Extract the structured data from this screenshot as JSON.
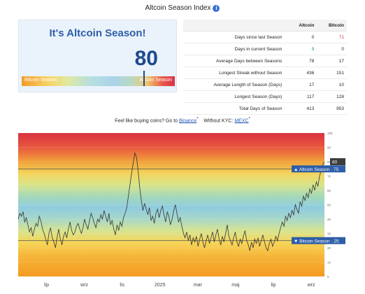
{
  "page_title": "Altcoin Season Index",
  "info_glyph": "i",
  "index_card": {
    "heading": "It's Altcoin Season!",
    "value": "80",
    "index_number": 80,
    "bar_left_label": "Bitcoin Season",
    "bar_right_label": "Altcoin Season"
  },
  "stats": {
    "headers": [
      "",
      "Altcoin",
      "Bitcoin"
    ],
    "rows": [
      {
        "metric": "Days since last Season",
        "altcoin": "0",
        "bitcoin": "71",
        "bitcoin_color": "#d93b3b"
      },
      {
        "metric": "Days in current Season",
        "altcoin": "9",
        "bitcoin": "0",
        "altcoin_color": "#2e9e46"
      },
      {
        "metric": "Average Days between Seasons",
        "altcoin": "78",
        "bitcoin": "17"
      },
      {
        "metric": "Longest Streak without Season",
        "altcoin": "436",
        "bitcoin": "151"
      },
      {
        "metric": "Average Length of Season (Days)",
        "altcoin": "17",
        "bitcoin": "10"
      },
      {
        "metric": "Longest Season (Days)",
        "altcoin": "117",
        "bitcoin": "128"
      },
      {
        "metric": "Total Days of Season",
        "altcoin": "413",
        "bitcoin": "953"
      }
    ]
  },
  "buy_line": {
    "prefix": "Feel like buying coins? Go to",
    "link1": "Binance",
    "mid": "Without KYC:",
    "link2": "MEXC",
    "sup": "*"
  },
  "chart_data": {
    "type": "line",
    "x_ticks": [
      "lip",
      "wrz",
      "lis",
      "2025",
      "mar",
      "maj",
      "lip",
      "wrz"
    ],
    "y_ticks": [
      "100",
      "90",
      "80",
      "70",
      "60",
      "50",
      "40",
      "30",
      "20",
      "10",
      "0"
    ],
    "ylim": [
      0,
      100
    ],
    "altcoin_threshold": {
      "label": "Altcoin Season",
      "value": 75
    },
    "bitcoin_threshold": {
      "label": "Bitcoin Season",
      "value": 25
    },
    "current_value": {
      "label": "80",
      "value": 80
    },
    "series": [
      {
        "values": [
          40,
          44,
          42,
          45,
          38,
          41,
          36,
          31,
          34,
          28,
          33,
          37,
          35,
          42,
          39,
          33,
          30,
          26,
          22,
          30,
          34,
          27,
          24,
          20,
          27,
          33,
          26,
          22,
          28,
          31,
          27,
          33,
          38,
          32,
          29,
          31,
          35,
          37,
          33,
          30,
          34,
          40,
          36,
          33,
          39,
          44,
          41,
          37,
          34,
          40,
          38,
          43,
          40,
          46,
          42,
          38,
          44,
          36,
          39,
          33,
          29,
          36,
          32,
          38,
          35,
          41,
          44,
          48,
          56,
          64,
          72,
          79,
          86,
          83,
          74,
          62,
          53,
          46,
          51,
          47,
          43,
          48,
          39,
          42,
          37,
          44,
          47,
          41,
          46,
          49,
          43,
          38,
          45,
          42,
          36,
          40,
          46,
          50,
          44,
          38,
          41,
          35,
          30,
          27,
          31,
          25,
          29,
          22,
          27,
          24,
          28,
          21,
          26,
          30,
          24,
          20,
          25,
          29,
          23,
          27,
          31,
          24,
          29,
          33,
          26,
          22,
          28,
          24,
          30,
          36,
          28,
          25,
          22,
          27,
          31,
          24,
          21,
          26,
          23,
          28,
          32,
          25,
          22,
          18,
          24,
          20,
          26,
          23,
          27,
          21,
          25,
          29,
          24,
          20,
          18,
          23,
          26,
          21,
          24,
          28,
          25,
          30,
          34,
          38,
          35,
          42,
          39,
          44,
          41,
          46,
          43,
          50,
          47,
          44,
          52,
          49,
          56,
          53,
          58,
          55,
          61,
          58,
          64,
          60,
          66,
          63,
          70,
          74,
          78,
          80
        ]
      }
    ]
  },
  "colors": {
    "accent": "#1d4a8c",
    "altcoin_red": "#d93b3b",
    "bitcoin_green": "#2e9e46",
    "tag_blue": "#2e5ea8"
  }
}
